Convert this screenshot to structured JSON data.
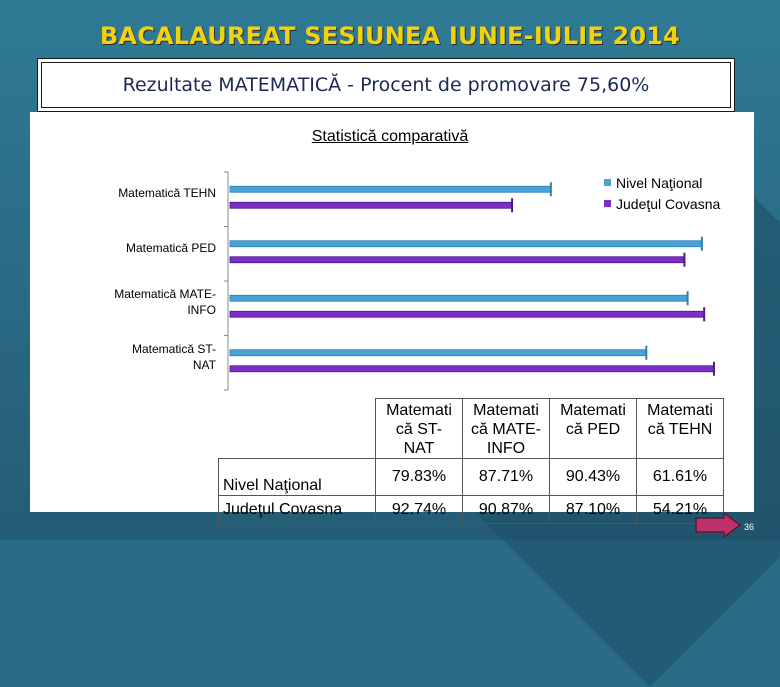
{
  "slide": {
    "title": "BACALAUREAT SESIUNEA IUNIE-IULIE 2014",
    "subtitle": "Rezultate MATEMATICĂ - Procent de promovare 75,60%",
    "page_number": "36"
  },
  "chart_data": {
    "type": "bar",
    "orientation": "horizontal",
    "title": "Statistică comparativă",
    "categories": [
      "Matematică TEHN",
      "Matematică PED",
      "Matematică MATE-INFO",
      "Matematică ST-NAT"
    ],
    "category_labels": [
      [
        "Matematică TEHN"
      ],
      [
        "Matematică PED"
      ],
      [
        "Matematică MATE-",
        "INFO"
      ],
      [
        "Matematică ST-",
        "NAT"
      ]
    ],
    "series": [
      {
        "name": "Nivel Naţional",
        "values": [
          61.61,
          90.43,
          87.71,
          79.83
        ],
        "color": "#4aa3d6"
      },
      {
        "name": "Judeţul Covasna",
        "values": [
          54.21,
          87.1,
          90.87,
          92.74
        ],
        "color": "#7a2fc8"
      }
    ],
    "xlim": [
      0,
      100
    ],
    "legend_position": "top-right",
    "grid": false
  },
  "table": {
    "headers": [
      [
        "Matemati",
        "că ST-",
        "NAT"
      ],
      [
        "Matemati",
        "că MATE-",
        "INFO"
      ],
      [
        "Matemati",
        "că PED"
      ],
      [
        "Matemati",
        "că TEHN"
      ]
    ],
    "rows": [
      {
        "label": "Nivel Naţional",
        "values": [
          "79.83%",
          "87.71%",
          "90.43%",
          "61.61%"
        ]
      },
      {
        "label": "Judeţul Covasna",
        "values": [
          "92.74%",
          "90.87%",
          "87.10%",
          "54.21%"
        ]
      }
    ]
  },
  "icons": {
    "next": "arrow-right-icon"
  }
}
